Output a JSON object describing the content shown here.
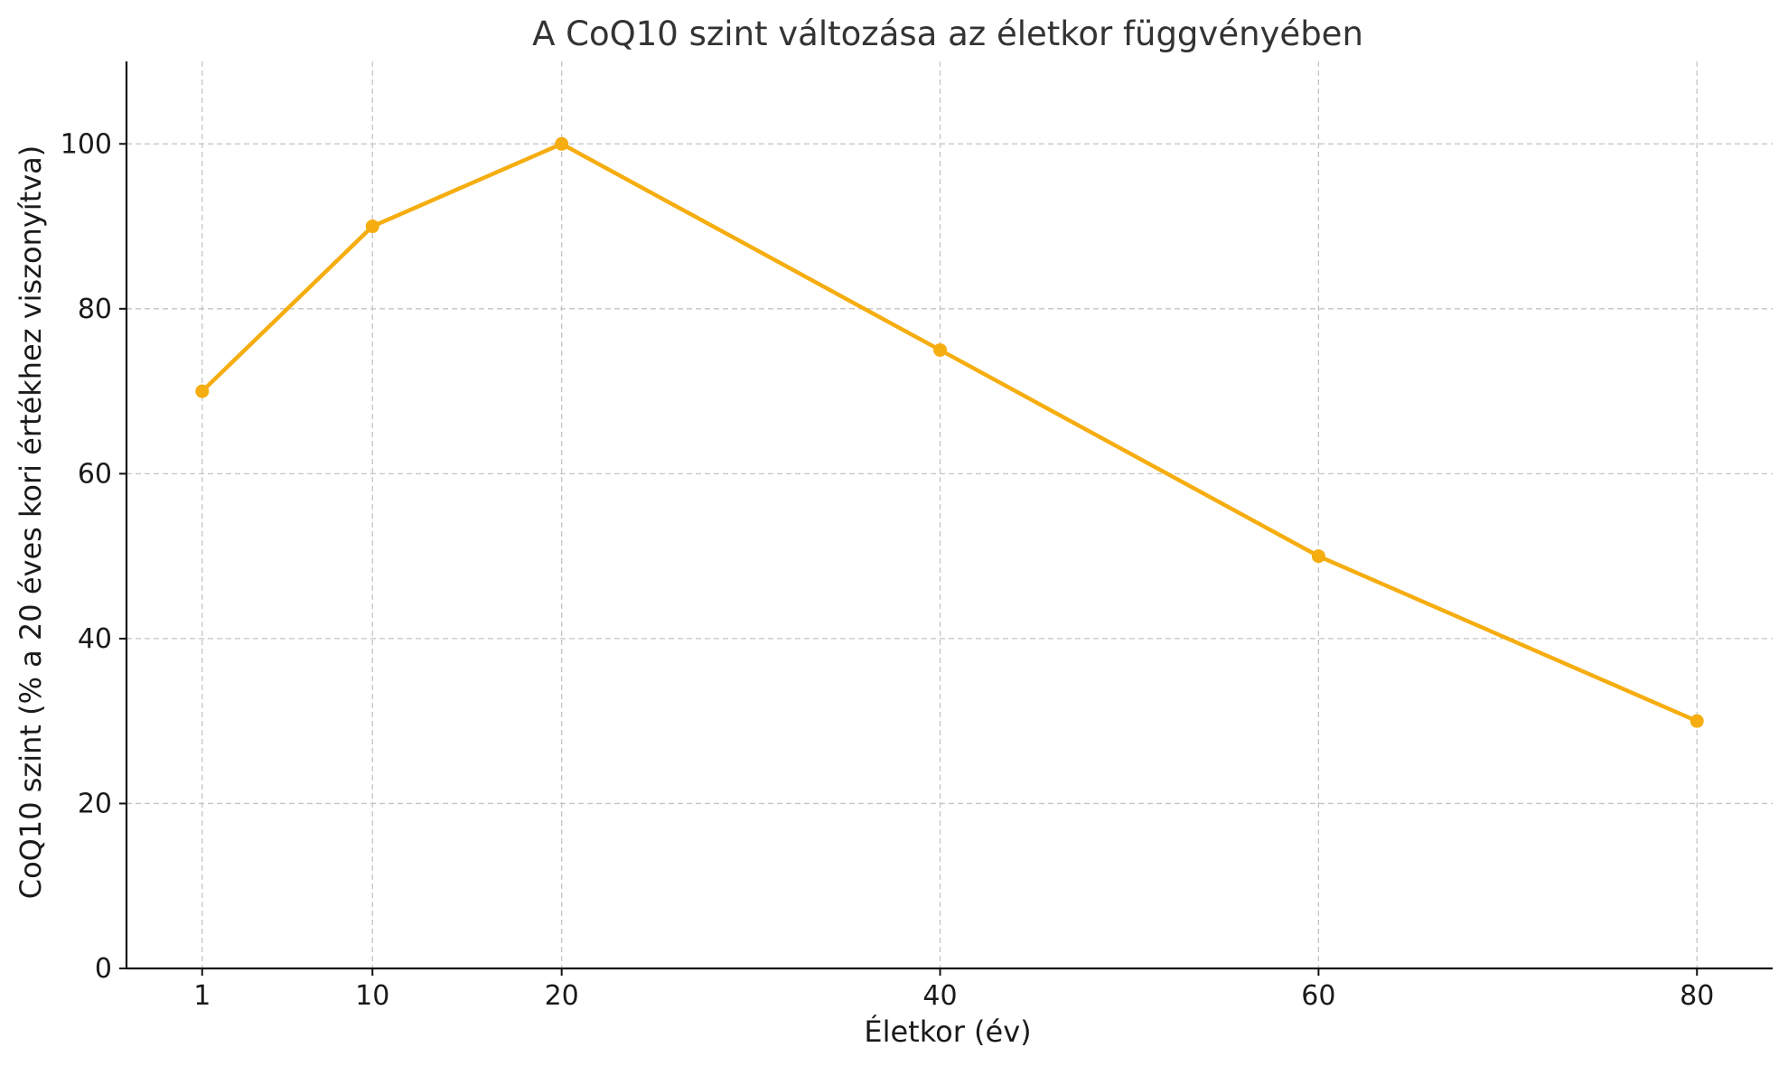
{
  "chart_data": {
    "type": "line",
    "title": "A CoQ10 szint változása az életkor függvényében",
    "xlabel": "Életkor (év)",
    "ylabel": "CoQ10 szint (% a 20 éves kori értékhez viszonyítva)",
    "x": [
      1,
      10,
      20,
      40,
      60,
      80
    ],
    "x_tick_labels": [
      "1",
      "10",
      "20",
      "40",
      "60",
      "80"
    ],
    "y_ticks": [
      0,
      20,
      40,
      60,
      80,
      100
    ],
    "y_tick_labels": [
      "0",
      "20",
      "40",
      "60",
      "80",
      "100"
    ],
    "xlim": [
      -3,
      84
    ],
    "ylim": [
      0,
      110
    ],
    "grid": true,
    "series": [
      {
        "values": [
          70,
          90,
          100,
          75,
          50,
          30
        ],
        "color": "#F5AD0F",
        "marker": "circle"
      }
    ]
  }
}
